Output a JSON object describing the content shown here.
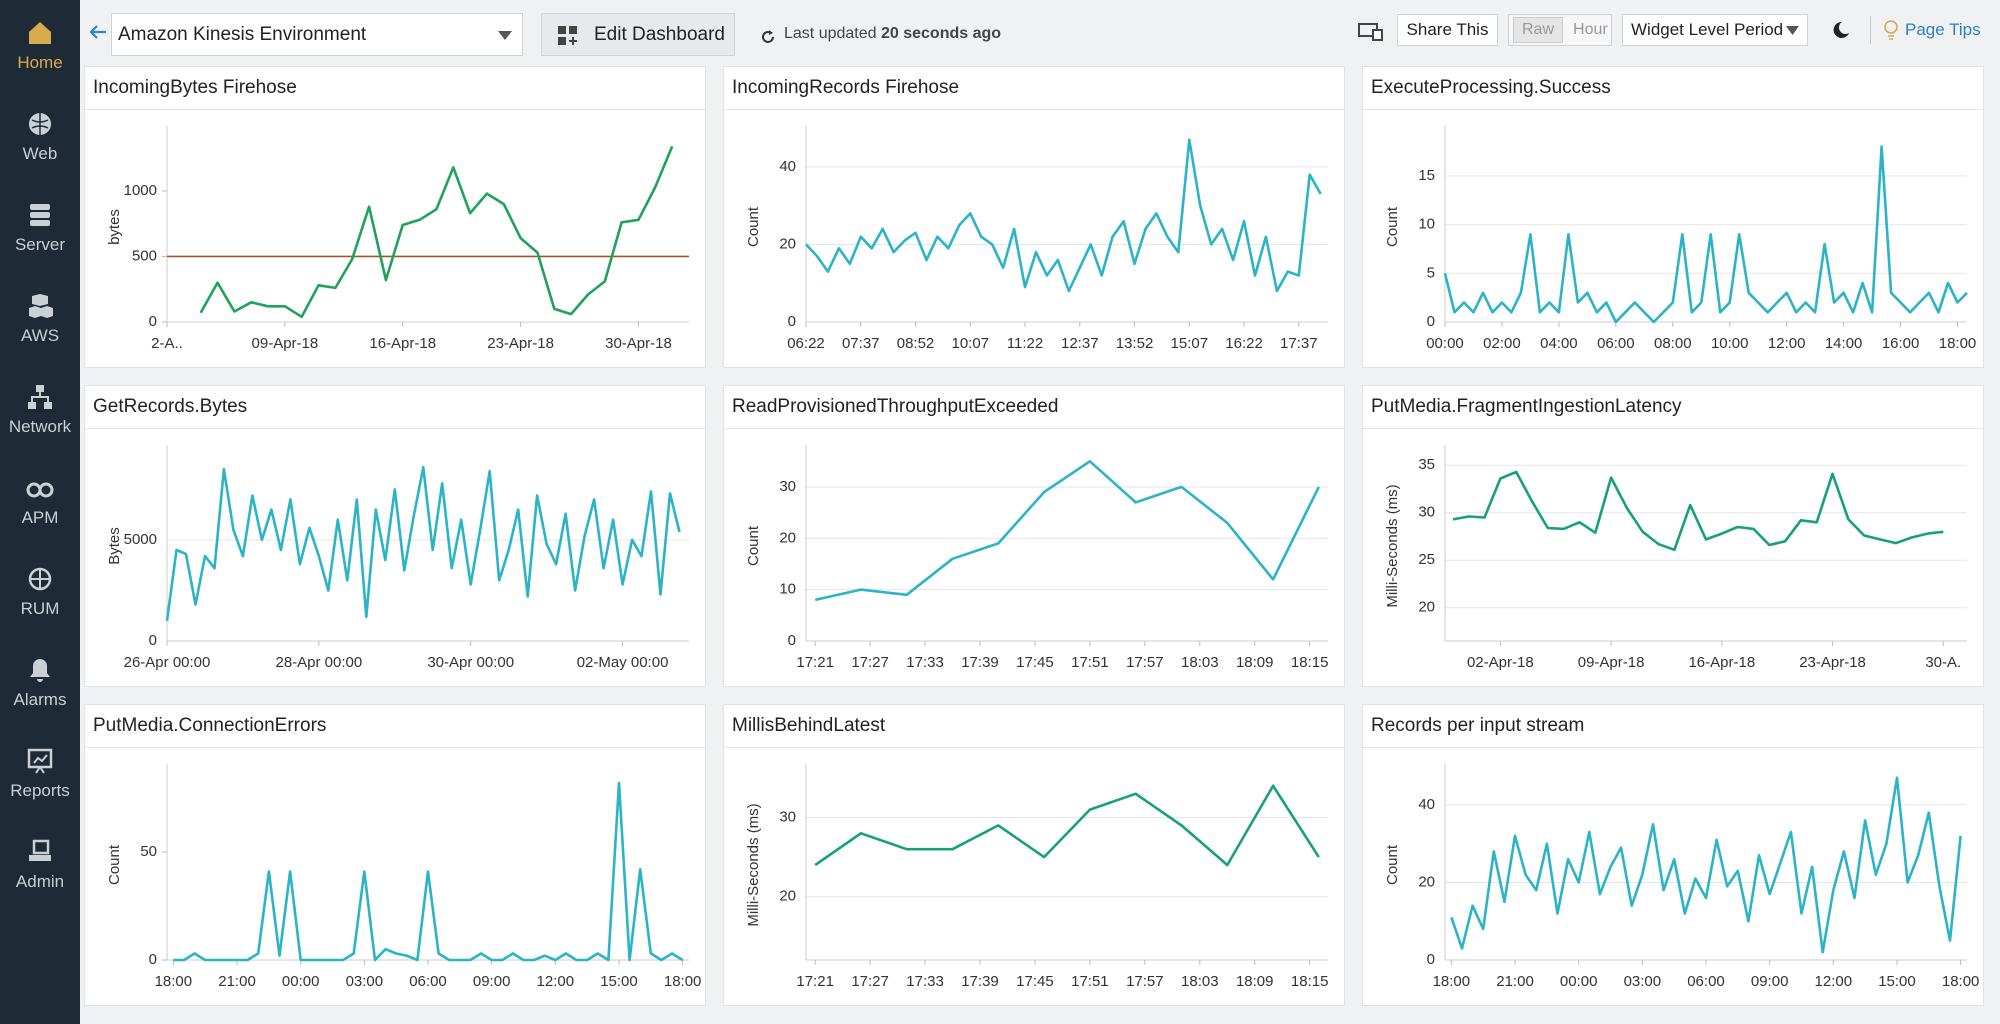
{
  "sidebar": [
    {
      "label": "Home",
      "active": true
    },
    {
      "label": "Web"
    },
    {
      "label": "Server"
    },
    {
      "label": "AWS"
    },
    {
      "label": "Network"
    },
    {
      "label": "APM"
    },
    {
      "label": "RUM"
    },
    {
      "label": "Alarms"
    },
    {
      "label": "Reports"
    },
    {
      "label": "Admin"
    }
  ],
  "toolbar": {
    "environment": "Amazon Kinesis Environment",
    "edit": "Edit Dashboard",
    "updated_prefix": "Last updated",
    "updated_value": "20 seconds ago",
    "share": "Share This",
    "raw": "Raw",
    "hour": "Hour",
    "period": "Widget Level Period",
    "tips": "Page Tips"
  },
  "chart_data": [
    {
      "type": "line",
      "title": "IncomingBytes Firehose",
      "y_label": "bytes",
      "color": "#1fa25a",
      "threshold": 500,
      "threshold_color": "#a0522d",
      "x": [
        2,
        3,
        4,
        5,
        6,
        7,
        8,
        9,
        10,
        11,
        12,
        13,
        14,
        15,
        16,
        17,
        18,
        19,
        20,
        21,
        22,
        23,
        24,
        25,
        26,
        27,
        28,
        29,
        30
      ],
      "values": [
        70,
        300,
        80,
        150,
        120,
        120,
        40,
        280,
        260,
        480,
        880,
        320,
        740,
        780,
        860,
        1180,
        830,
        980,
        900,
        640,
        530,
        100,
        60,
        210,
        310,
        760,
        780,
        1030,
        1340
      ],
      "xlim": [
        0,
        31
      ],
      "xticks": [
        {
          "value": 0,
          "label": "2-A.."
        },
        {
          "value": 7,
          "label": "09-Apr-18"
        },
        {
          "value": 14,
          "label": "16-Apr-18"
        },
        {
          "value": 21,
          "label": "23-Apr-18"
        },
        {
          "value": 28,
          "label": "30-Apr-18"
        }
      ],
      "ylim": [
        0,
        1450
      ],
      "yticks": [
        0,
        500,
        1000
      ],
      "grid": false
    },
    {
      "type": "line",
      "title": "IncomingRecords Firehose",
      "y_label": "Count",
      "color": "#2bb3c6",
      "x": [
        0,
        15,
        30,
        45,
        60,
        75,
        90,
        105,
        120,
        135,
        150,
        165,
        180,
        195,
        210,
        225,
        240,
        255,
        270,
        285,
        300,
        315,
        330,
        345,
        360,
        375,
        390,
        405,
        420,
        435,
        450,
        465,
        480,
        495,
        510,
        525,
        540,
        555,
        570,
        585,
        600,
        615,
        630,
        645,
        660,
        675,
        690,
        705
      ],
      "values": [
        20,
        17,
        13,
        19,
        15,
        22,
        19,
        24,
        18,
        21,
        23,
        16,
        22,
        19,
        25,
        28,
        22,
        20,
        14,
        24,
        9,
        18,
        12,
        16,
        8,
        14,
        20,
        12,
        22,
        26,
        15,
        24,
        28,
        22,
        18,
        47,
        30,
        20,
        24,
        16,
        26,
        12,
        22,
        8,
        13,
        12,
        38,
        33
      ],
      "xlim": [
        0,
        715
      ],
      "xticks": [
        {
          "value": 0,
          "label": "06:22"
        },
        {
          "value": 75,
          "label": "07:37"
        },
        {
          "value": 150,
          "label": "08:52"
        },
        {
          "value": 225,
          "label": "10:07"
        },
        {
          "value": 300,
          "label": "11:22"
        },
        {
          "value": 375,
          "label": "12:37"
        },
        {
          "value": 450,
          "label": "13:52"
        },
        {
          "value": 525,
          "label": "15:07"
        },
        {
          "value": 600,
          "label": "16:22"
        },
        {
          "value": 675,
          "label": "17:37"
        }
      ],
      "ylim": [
        0,
        49
      ],
      "yticks": [
        0,
        20,
        40
      ],
      "grid": true
    },
    {
      "type": "line",
      "title": "ExecuteProcessing.Success",
      "y_label": "Count",
      "color": "#2bb3c6",
      "x": [
        0,
        20,
        40,
        60,
        80,
        100,
        120,
        140,
        160,
        180,
        200,
        220,
        240,
        260,
        280,
        300,
        320,
        340,
        360,
        380,
        400,
        420,
        440,
        460,
        480,
        500,
        520,
        540,
        560,
        580,
        600,
        620,
        640,
        660,
        680,
        700,
        720,
        740,
        760,
        780,
        800,
        820,
        840,
        860,
        880,
        900,
        920,
        940,
        960,
        980,
        1000,
        1020,
        1040,
        1060,
        1080,
        1100
      ],
      "values": [
        5,
        1,
        2,
        1,
        3,
        1,
        2,
        1,
        3,
        9,
        1,
        2,
        1,
        9,
        2,
        3,
        1,
        2,
        0,
        1,
        2,
        1,
        0,
        1,
        2,
        9,
        1,
        2,
        9,
        1,
        2,
        9,
        3,
        2,
        1,
        2,
        3,
        1,
        2,
        1,
        8,
        2,
        3,
        1,
        4,
        1,
        18,
        3,
        2,
        1,
        2,
        3,
        1,
        4,
        2,
        3
      ],
      "xlim": [
        0,
        1100
      ],
      "xticks": [
        {
          "value": 0,
          "label": "00:00"
        },
        {
          "value": 120,
          "label": "02:00"
        },
        {
          "value": 240,
          "label": "04:00"
        },
        {
          "value": 360,
          "label": "06:00"
        },
        {
          "value": 480,
          "label": "08:00"
        },
        {
          "value": 600,
          "label": "10:00"
        },
        {
          "value": 720,
          "label": "12:00"
        },
        {
          "value": 840,
          "label": "14:00"
        },
        {
          "value": 960,
          "label": "16:00"
        },
        {
          "value": 1080,
          "label": "18:00"
        }
      ],
      "ylim": [
        0,
        19.5
      ],
      "yticks": [
        0,
        5,
        10,
        15
      ],
      "grid": true
    },
    {
      "type": "line",
      "title": "GetRecords.Bytes",
      "y_label": "Bytes",
      "color": "#2bb3c6",
      "x": [
        0,
        3,
        6,
        9,
        12,
        15,
        18,
        21,
        24,
        27,
        30,
        33,
        36,
        39,
        42,
        45,
        48,
        51,
        54,
        57,
        60,
        63,
        66,
        69,
        72,
        75,
        78,
        81,
        84,
        87,
        90,
        93,
        96,
        99,
        102,
        105,
        108,
        111,
        114,
        117,
        120,
        123,
        126,
        129,
        132,
        135,
        138,
        141,
        144,
        147,
        150,
        153,
        156,
        159,
        162
      ],
      "values": [
        1000,
        4500,
        4300,
        1800,
        4200,
        3600,
        8500,
        5500,
        4200,
        7200,
        5000,
        6500,
        4500,
        7000,
        3800,
        5600,
        4200,
        2500,
        6000,
        3000,
        7000,
        1200,
        6500,
        4000,
        7500,
        3500,
        6200,
        8600,
        4500,
        7800,
        3600,
        6000,
        2800,
        5500,
        8400,
        3000,
        4500,
        6500,
        2200,
        7200,
        4800,
        3800,
        6300,
        2500,
        5200,
        7000,
        3600,
        6000,
        2800,
        5000,
        4200,
        7400,
        2300,
        7300,
        5400
      ],
      "xlim": [
        0,
        165
      ],
      "xticks": [
        {
          "value": 0,
          "label": "26-Apr 00:00"
        },
        {
          "value": 48,
          "label": "28-Apr 00:00"
        },
        {
          "value": 96,
          "label": "30-Apr 00:00"
        },
        {
          "value": 144,
          "label": "02-May 00:00"
        }
      ],
      "ylim": [
        0,
        9400
      ],
      "yticks": [
        0,
        5000
      ],
      "grid": true
    },
    {
      "type": "line",
      "title": "ReadProvisionedThroughputExceeded",
      "y_label": "Count",
      "color": "#2bb3c6",
      "x": [
        0,
        5,
        10,
        15,
        20,
        25,
        30,
        35,
        40,
        45,
        50,
        55
      ],
      "values": [
        8,
        10,
        9,
        16,
        19,
        29,
        35,
        27,
        30,
        23,
        12,
        30
      ],
      "xlim": [
        -1,
        56
      ],
      "xticks": [
        {
          "value": 0,
          "label": "17:21"
        },
        {
          "value": 6,
          "label": "17:27"
        },
        {
          "value": 12,
          "label": "17:33"
        },
        {
          "value": 18,
          "label": "17:39"
        },
        {
          "value": 24,
          "label": "17:45"
        },
        {
          "value": 30,
          "label": "17:51"
        },
        {
          "value": 36,
          "label": "17:57"
        },
        {
          "value": 42,
          "label": "18:03"
        },
        {
          "value": 48,
          "label": "18:09"
        },
        {
          "value": 54,
          "label": "18:15"
        }
      ],
      "ylim": [
        0,
        37
      ],
      "yticks": [
        0,
        10,
        20,
        30
      ],
      "grid": true
    },
    {
      "type": "line",
      "title": "PutMedia.FragmentIngestionLatency",
      "y_label": "Milli-Seconds (ms)",
      "color": "#17a07a",
      "x": [
        -3,
        -2,
        -1,
        0,
        1,
        2,
        3,
        4,
        5,
        6,
        7,
        8,
        9,
        10,
        11,
        12,
        13,
        14,
        15,
        16,
        17,
        18,
        19,
        20,
        21,
        22,
        23,
        24,
        25,
        26,
        27,
        28
      ],
      "values": [
        29.3,
        29.6,
        29.5,
        33.6,
        34.3,
        31.2,
        28.4,
        28.3,
        29,
        27.9,
        33.7,
        30.5,
        28,
        26.7,
        26.1,
        30.8,
        27.2,
        27.8,
        28.5,
        28.3,
        26.6,
        27,
        29.2,
        29,
        34.1,
        29.3,
        27.6,
        27.2,
        26.8,
        27.4,
        27.8,
        28
      ],
      "xlim": [
        -3.5,
        29.5
      ],
      "xticks": [
        {
          "value": 0,
          "label": "02-Apr-18"
        },
        {
          "value": 7,
          "label": "09-Apr-18"
        },
        {
          "value": 14,
          "label": "16-Apr-18"
        },
        {
          "value": 21,
          "label": "23-Apr-18"
        },
        {
          "value": 28,
          "label": "30-A."
        }
      ],
      "ylim": [
        16.5,
        36.5
      ],
      "yticks": [
        20,
        25,
        30,
        35
      ],
      "grid": true
    },
    {
      "type": "line",
      "title": "PutMedia.ConnectionErrors",
      "y_label": "Count",
      "color": "#2bb3c6",
      "x": [
        0,
        0.5,
        1,
        1.5,
        2,
        2.5,
        3,
        3.5,
        4,
        4.5,
        5,
        5.5,
        6,
        6.5,
        7,
        7.5,
        8,
        8.5,
        9,
        9.5,
        10,
        10.5,
        11,
        11.5,
        12,
        12.5,
        13,
        13.5,
        14,
        14.5,
        15,
        15.5,
        16,
        16.5,
        17,
        17.5,
        18,
        18.5,
        19,
        19.5,
        20,
        20.5,
        21,
        21.5,
        22,
        22.5,
        23,
        23.5,
        24
      ],
      "values": [
        0,
        0,
        3,
        0,
        0,
        0,
        0,
        0,
        3,
        41,
        2,
        41,
        0,
        0,
        0,
        0,
        0,
        3,
        41,
        0,
        5,
        3,
        2,
        0,
        41,
        3,
        0,
        0,
        0,
        3,
        0,
        0,
        3,
        0,
        0,
        2,
        0,
        3,
        0,
        0,
        3,
        0,
        82,
        0,
        42,
        3,
        0,
        3,
        0
      ],
      "xlim": [
        -0.3,
        24.3
      ],
      "xticks": [
        {
          "value": 0,
          "label": "18:00"
        },
        {
          "value": 3,
          "label": "21:00"
        },
        {
          "value": 6,
          "label": "00:00"
        },
        {
          "value": 9,
          "label": "03:00"
        },
        {
          "value": 12,
          "label": "06:00"
        },
        {
          "value": 15,
          "label": "09:00"
        },
        {
          "value": 18,
          "label": "12:00"
        },
        {
          "value": 21,
          "label": "15:00"
        },
        {
          "value": 24,
          "label": "18:00"
        }
      ],
      "ylim": [
        0,
        88
      ],
      "yticks": [
        0,
        50
      ],
      "grid": false
    },
    {
      "type": "line",
      "title": "MillisBehindLatest",
      "y_label": "Milli-Seconds (ms)",
      "color": "#17a07a",
      "x": [
        0,
        5,
        10,
        15,
        20,
        25,
        30,
        35,
        40,
        45,
        50,
        55
      ],
      "values": [
        24,
        28,
        26,
        26,
        29,
        25,
        31,
        33,
        29,
        24,
        34,
        25
      ],
      "xlim": [
        -1,
        56
      ],
      "xticks": [
        {
          "value": 0,
          "label": "17:21"
        },
        {
          "value": 6,
          "label": "17:27"
        },
        {
          "value": 12,
          "label": "17:33"
        },
        {
          "value": 18,
          "label": "17:39"
        },
        {
          "value": 24,
          "label": "17:45"
        },
        {
          "value": 30,
          "label": "17:51"
        },
        {
          "value": 36,
          "label": "17:57"
        },
        {
          "value": 42,
          "label": "18:03"
        },
        {
          "value": 48,
          "label": "18:09"
        },
        {
          "value": 54,
          "label": "18:15"
        }
      ],
      "ylim": [
        12,
        36
      ],
      "yticks": [
        20,
        30
      ],
      "grid": true
    },
    {
      "type": "line",
      "title": "Records per input stream",
      "y_label": "Count",
      "color": "#2bb3c6",
      "x": [
        0,
        0.5,
        1,
        1.5,
        2,
        2.5,
        3,
        3.5,
        4,
        4.5,
        5,
        5.5,
        6,
        6.5,
        7,
        7.5,
        8,
        8.5,
        9,
        9.5,
        10,
        10.5,
        11,
        11.5,
        12,
        12.5,
        13,
        13.5,
        14,
        14.5,
        15,
        15.5,
        16,
        16.5,
        17,
        17.5,
        18,
        18.5,
        19,
        19.5,
        20,
        20.5,
        21,
        21.5,
        22,
        22.5,
        23,
        23.5,
        24
      ],
      "values": [
        11,
        3,
        14,
        8,
        28,
        15,
        32,
        22,
        18,
        30,
        12,
        26,
        20,
        33,
        17,
        24,
        29,
        14,
        22,
        35,
        18,
        26,
        12,
        21,
        16,
        31,
        19,
        23,
        10,
        27,
        17,
        25,
        33,
        12,
        24,
        2,
        18,
        28,
        16,
        36,
        22,
        30,
        47,
        20,
        27,
        38,
        19,
        5,
        32
      ],
      "xlim": [
        -0.3,
        24.3
      ],
      "xticks": [
        {
          "value": 0,
          "label": "18:00"
        },
        {
          "value": 3,
          "label": "21:00"
        },
        {
          "value": 6,
          "label": "00:00"
        },
        {
          "value": 9,
          "label": "03:00"
        },
        {
          "value": 12,
          "label": "06:00"
        },
        {
          "value": 15,
          "label": "09:00"
        },
        {
          "value": 18,
          "label": "12:00"
        },
        {
          "value": 21,
          "label": "15:00"
        },
        {
          "value": 24,
          "label": "18:00"
        }
      ],
      "ylim": [
        0,
        49
      ],
      "yticks": [
        0,
        20,
        40
      ],
      "grid": true
    }
  ]
}
